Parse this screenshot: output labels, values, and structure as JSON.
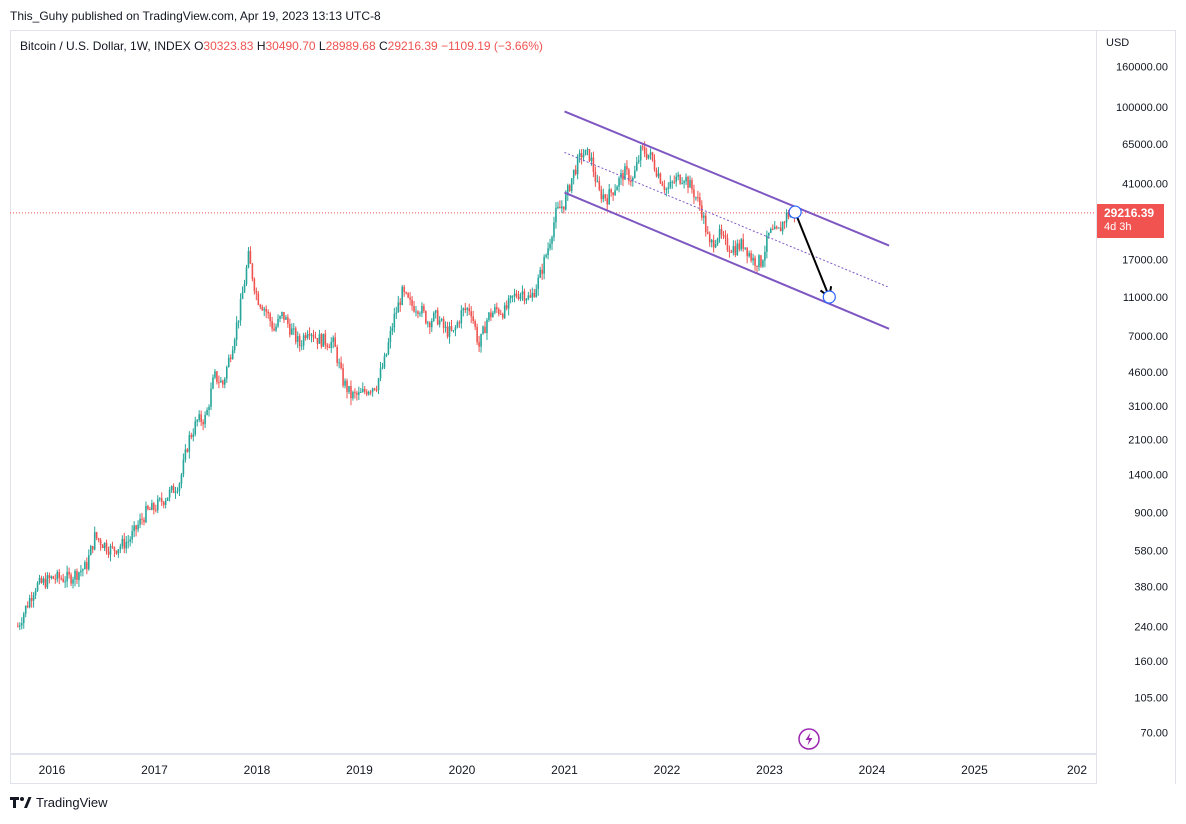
{
  "published": "This_Guhy published on TradingView.com, Apr 19, 2023 13:13 UTC-8",
  "legend": {
    "title": "Bitcoin / U.S. Dollar, 1W, INDEX",
    "o_key": "O",
    "o": "30323.83",
    "h_key": "H",
    "h": "30490.70",
    "l_key": "L",
    "l": "28989.68",
    "c_key": "C",
    "c": "29216.39",
    "change": "−1109.19 (−3.66%)"
  },
  "currency": "USD",
  "last_price": {
    "price": "29216.39",
    "countdown": "4d 3h"
  },
  "footer": {
    "brand": "TradingView",
    "logo_icon": "tradingview-logo-icon"
  },
  "colors": {
    "up": "#26a69a",
    "down": "#ef5350",
    "channel": "#7e57c2",
    "arrow": "#000000",
    "last": "#f05350"
  },
  "chart_data": {
    "type": "candlestick",
    "symbol": "Bitcoin / U.S. Dollar",
    "interval": "1W",
    "y_scale": "log",
    "ylim": [
      60,
      200000
    ],
    "y_ticks": [
      "160000.00",
      "100000.00",
      "65000.00",
      "41000.00",
      "17000.00",
      "11000.00",
      "7000.00",
      "4600.00",
      "3100.00",
      "2100.00",
      "1400.00",
      "900.00",
      "580.00",
      "380.00",
      "240.00",
      "160.00",
      "105.00",
      "70.00"
    ],
    "x_ticks": [
      "2016",
      "2017",
      "2018",
      "2019",
      "2020",
      "2021",
      "2022",
      "2023",
      "2024",
      "2025",
      "202"
    ],
    "price_path": [
      [
        "2015-09",
        240
      ],
      [
        "2015-11",
        380
      ],
      [
        "2016-01",
        420
      ],
      [
        "2016-03",
        420
      ],
      [
        "2016-05",
        480
      ],
      [
        "2016-06",
        680
      ],
      [
        "2016-08",
        580
      ],
      [
        "2016-10",
        650
      ],
      [
        "2016-12",
        900
      ],
      [
        "2017-01",
        950
      ],
      [
        "2017-03",
        1150
      ],
      [
        "2017-04",
        1300
      ],
      [
        "2017-05",
        2100
      ],
      [
        "2017-06",
        2600
      ],
      [
        "2017-07",
        2700
      ],
      [
        "2017-08",
        4400
      ],
      [
        "2017-09",
        4000
      ],
      [
        "2017-10",
        6000
      ],
      [
        "2017-11",
        9500
      ],
      [
        "2017-12",
        17500
      ],
      [
        "2018-01",
        11000
      ],
      [
        "2018-02",
        9500
      ],
      [
        "2018-03",
        7500
      ],
      [
        "2018-04",
        9000
      ],
      [
        "2018-05",
        7500
      ],
      [
        "2018-06",
        6300
      ],
      [
        "2018-07",
        7800
      ],
      [
        "2018-08",
        6800
      ],
      [
        "2018-09",
        6600
      ],
      [
        "2018-10",
        6400
      ],
      [
        "2018-11",
        4200
      ],
      [
        "2018-12",
        3500
      ],
      [
        "2019-01",
        3500
      ],
      [
        "2019-02",
        3800
      ],
      [
        "2019-03",
        4000
      ],
      [
        "2019-04",
        5300
      ],
      [
        "2019-05",
        8500
      ],
      [
        "2019-06",
        11500
      ],
      [
        "2019-07",
        10000
      ],
      [
        "2019-08",
        9800
      ],
      [
        "2019-09",
        8300
      ],
      [
        "2019-10",
        8800
      ],
      [
        "2019-11",
        7500
      ],
      [
        "2019-12",
        7200
      ],
      [
        "2020-01",
        9300
      ],
      [
        "2020-02",
        9700
      ],
      [
        "2020-03",
        6200
      ],
      [
        "2020-04",
        8700
      ],
      [
        "2020-05",
        9500
      ],
      [
        "2020-06",
        9300
      ],
      [
        "2020-07",
        11000
      ],
      [
        "2020-08",
        11800
      ],
      [
        "2020-09",
        10700
      ],
      [
        "2020-10",
        13500
      ],
      [
        "2020-11",
        19000
      ],
      [
        "2020-12",
        29000
      ],
      [
        "2021-01",
        33000
      ],
      [
        "2021-02",
        46000
      ],
      [
        "2021-03",
        58000
      ],
      [
        "2021-04",
        57000
      ],
      [
        "2021-05",
        37000
      ],
      [
        "2021-06",
        35000
      ],
      [
        "2021-07",
        40000
      ],
      [
        "2021-08",
        47000
      ],
      [
        "2021-09",
        43000
      ],
      [
        "2021-10",
        61000
      ],
      [
        "2021-11",
        57000
      ],
      [
        "2021-12",
        46000
      ],
      [
        "2022-01",
        38000
      ],
      [
        "2022-02",
        43000
      ],
      [
        "2022-03",
        45000
      ],
      [
        "2022-04",
        38000
      ],
      [
        "2022-05",
        31000
      ],
      [
        "2022-06",
        19800
      ],
      [
        "2022-07",
        23000
      ],
      [
        "2022-08",
        20000
      ],
      [
        "2022-09",
        19400
      ],
      [
        "2022-10",
        20500
      ],
      [
        "2022-11",
        17000
      ],
      [
        "2022-12",
        16500
      ],
      [
        "2023-01",
        23100
      ],
      [
        "2023-02",
        23200
      ],
      [
        "2023-03",
        28500
      ],
      [
        "2023-04",
        29216.39
      ]
    ],
    "channel": {
      "upper": [
        [
          "2021-01",
          95000
        ],
        [
          "2024-03",
          20000
        ]
      ],
      "lower": [
        [
          "2021-01",
          37000
        ],
        [
          "2024-03",
          7600
        ]
      ],
      "mid": [
        [
          "2021-01",
          59000
        ],
        [
          "2024-03",
          12300
        ]
      ]
    },
    "projection_arrow": {
      "from": [
        "2023-04",
        29500
      ],
      "to": [
        "2023-08",
        11000
      ]
    }
  }
}
